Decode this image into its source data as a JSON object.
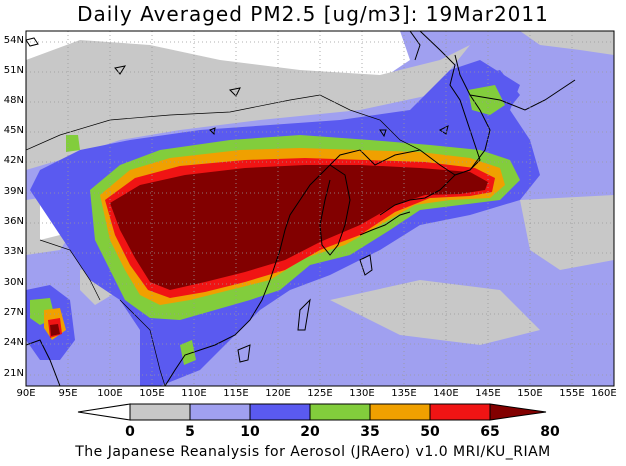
{
  "title": "Daily Averaged PM2.5 [ug/m3]: 19Mar2011",
  "credit": "The Japanese Reanalysis for Aerosol (JRAero) v1.0 MRI/KU_RIAM",
  "map": {
    "lon_range": [
      90,
      160
    ],
    "lat_range": [
      20,
      55
    ],
    "lat_labels": [
      "54N",
      "51N",
      "48N",
      "45N",
      "42N",
      "39N",
      "36N",
      "33N",
      "30N",
      "27N",
      "24N",
      "21N"
    ],
    "lon_labels": [
      "90E",
      "95E",
      "100E",
      "105E",
      "110E",
      "115E",
      "120E",
      "125E",
      "130E",
      "135E",
      "140E",
      "145E",
      "150E",
      "155E",
      "160E"
    ]
  },
  "legend": {
    "labels": [
      "0",
      "5",
      "10",
      "20",
      "35",
      "50",
      "65",
      "80"
    ],
    "colors": [
      "#ffffff",
      "#c8c8c8",
      "#a0a0f0",
      "#5a5af0",
      "#82cd3c",
      "#f0a000",
      "#f01414",
      "#820000"
    ]
  }
}
